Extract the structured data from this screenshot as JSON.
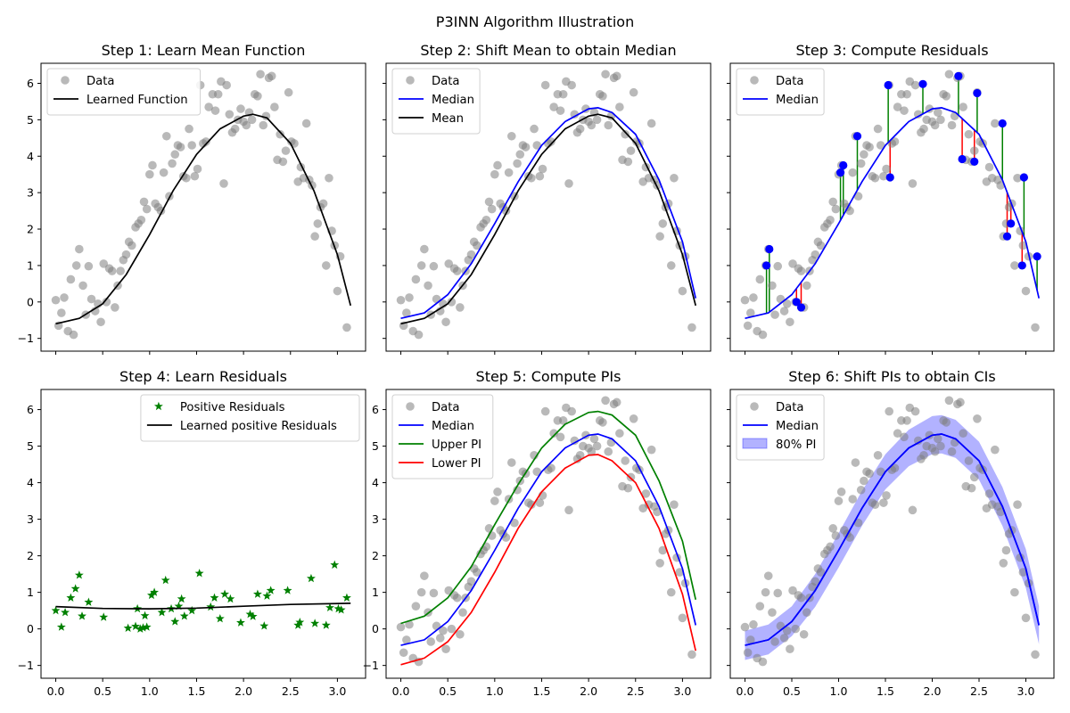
{
  "figure": {
    "suptitle": "P3INN Algorithm Illustration",
    "xticks": [
      "0.0",
      "0.5",
      "1.0",
      "1.5",
      "2.0",
      "2.5",
      "3.0"
    ],
    "yticks": [
      "−1",
      "0",
      "1",
      "2",
      "3",
      "4",
      "5",
      "6"
    ]
  },
  "colors": {
    "data": "#808080",
    "black": "#000000",
    "median": "#0000ff",
    "upper": "#008000",
    "lower": "#ff0000",
    "star": "#008000",
    "band": "#0000ff"
  },
  "chart_data": [
    {
      "type": "scatter",
      "title": "Step 1: Learn Mean Function",
      "xlim": [
        -0.157,
        3.3
      ],
      "ylim": [
        -1.35,
        6.55
      ],
      "grid": false,
      "legend": {
        "placement": "top-left",
        "entries": [
          "Data",
          "Learned Function"
        ]
      },
      "series": [
        {
          "name": "Data",
          "kind": "scatter",
          "ref": "data"
        },
        {
          "name": "Learned Function",
          "kind": "line",
          "ref": "mean"
        }
      ]
    },
    {
      "type": "scatter",
      "title": "Step 2: Shift Mean to obtain Median",
      "xlim": [
        -0.157,
        3.3
      ],
      "ylim": [
        -1.35,
        6.55
      ],
      "grid": false,
      "legend": {
        "placement": "top-left",
        "entries": [
          "Data",
          "Median",
          "Mean"
        ]
      },
      "series": [
        {
          "name": "Data",
          "kind": "scatter",
          "ref": "data"
        },
        {
          "name": "Median",
          "kind": "line",
          "ref": "median"
        },
        {
          "name": "Mean",
          "kind": "line",
          "ref": "mean"
        }
      ]
    },
    {
      "type": "scatter",
      "title": "Step 3: Compute Residuals",
      "xlim": [
        -0.157,
        3.3
      ],
      "ylim": [
        -1.35,
        6.55
      ],
      "grid": false,
      "legend": {
        "placement": "top-left",
        "entries": [
          "Data",
          "Median"
        ]
      },
      "series": [
        {
          "name": "Data",
          "kind": "scatter",
          "ref": "data"
        },
        {
          "name": "Median",
          "kind": "line",
          "ref": "median"
        }
      ],
      "highlighted_points": [
        [
          0.23,
          1.0
        ],
        [
          0.26,
          1.45
        ],
        [
          0.55,
          0.0
        ],
        [
          0.6,
          -0.15
        ],
        [
          1.02,
          3.55
        ],
        [
          1.05,
          3.75
        ],
        [
          1.2,
          4.55
        ],
        [
          1.53,
          5.95
        ],
        [
          1.55,
          3.42
        ],
        [
          1.9,
          5.98
        ],
        [
          2.28,
          6.2
        ],
        [
          2.32,
          3.92
        ],
        [
          2.45,
          3.85
        ],
        [
          2.48,
          5.73
        ],
        [
          2.75,
          4.9
        ],
        [
          2.8,
          1.8
        ],
        [
          2.84,
          2.15
        ],
        [
          2.96,
          1.0
        ],
        [
          2.98,
          3.42
        ],
        [
          3.12,
          1.25
        ]
      ]
    },
    {
      "type": "scatter",
      "title": "Step 4: Learn Residuals",
      "xlim": [
        -0.157,
        3.3
      ],
      "ylim": [
        -1.35,
        6.55
      ],
      "grid": false,
      "legend": {
        "placement": "top-right",
        "entries": [
          "Positive Residuals",
          "Learned positive Residuals"
        ]
      },
      "series": [
        {
          "name": "Positive Residuals",
          "kind": "star",
          "points": [
            [
              0.0,
              0.5
            ],
            [
              0.06,
              0.05
            ],
            [
              0.1,
              0.45
            ],
            [
              0.16,
              0.85
            ],
            [
              0.21,
              1.1
            ],
            [
              0.25,
              1.47
            ],
            [
              0.28,
              0.35
            ],
            [
              0.35,
              0.73
            ],
            [
              0.51,
              0.32
            ],
            [
              0.77,
              0.02
            ],
            [
              0.85,
              0.07
            ],
            [
              0.87,
              0.55
            ],
            [
              0.9,
              0.0
            ],
            [
              0.93,
              0.03
            ],
            [
              0.95,
              0.36
            ],
            [
              0.97,
              0.05
            ],
            [
              1.02,
              0.92
            ],
            [
              1.05,
              1.0
            ],
            [
              1.13,
              0.45
            ],
            [
              1.17,
              1.33
            ],
            [
              1.23,
              0.55
            ],
            [
              1.27,
              0.2
            ],
            [
              1.31,
              0.62
            ],
            [
              1.34,
              0.82
            ],
            [
              1.37,
              0.35
            ],
            [
              1.45,
              0.5
            ],
            [
              1.53,
              1.52
            ],
            [
              1.65,
              0.6
            ],
            [
              1.69,
              0.85
            ],
            [
              1.75,
              0.28
            ],
            [
              1.8,
              0.95
            ],
            [
              1.86,
              0.82
            ],
            [
              1.97,
              0.17
            ],
            [
              2.07,
              0.4
            ],
            [
              2.1,
              0.34
            ],
            [
              2.15,
              0.95
            ],
            [
              2.22,
              0.08
            ],
            [
              2.25,
              0.9
            ],
            [
              2.29,
              1.05
            ],
            [
              2.47,
              1.05
            ],
            [
              2.58,
              0.1
            ],
            [
              2.6,
              0.18
            ],
            [
              2.72,
              1.38
            ],
            [
              2.76,
              0.15
            ],
            [
              2.88,
              0.1
            ],
            [
              2.92,
              0.58
            ],
            [
              2.97,
              1.75
            ],
            [
              3.01,
              0.55
            ],
            [
              3.04,
              0.52
            ],
            [
              3.1,
              0.85
            ]
          ]
        },
        {
          "name": "Learned positive Residuals",
          "kind": "line",
          "points": [
            [
              0.0,
              0.61
            ],
            [
              0.5,
              0.56
            ],
            [
              1.0,
              0.55
            ],
            [
              1.5,
              0.57
            ],
            [
              2.0,
              0.62
            ],
            [
              2.5,
              0.67
            ],
            [
              3.14,
              0.7
            ]
          ]
        }
      ]
    },
    {
      "type": "scatter",
      "title": "Step 5: Compute PIs",
      "xlim": [
        -0.157,
        3.3
      ],
      "ylim": [
        -1.35,
        6.55
      ],
      "grid": false,
      "legend": {
        "placement": "top-left",
        "entries": [
          "Data",
          "Median",
          "Upper PI",
          "Lower PI"
        ]
      },
      "series": [
        {
          "name": "Data",
          "kind": "scatter",
          "ref": "data"
        },
        {
          "name": "Median",
          "kind": "line",
          "ref": "median"
        },
        {
          "name": "Upper PI",
          "kind": "line",
          "ref": "upper"
        },
        {
          "name": "Lower PI",
          "kind": "line",
          "ref": "lower"
        }
      ]
    },
    {
      "type": "area",
      "title": "Step 6: Shift PIs to obtain CIs",
      "xlim": [
        -0.157,
        3.3
      ],
      "ylim": [
        -1.35,
        6.55
      ],
      "grid": false,
      "legend": {
        "placement": "top-left",
        "entries": [
          "Data",
          "Median",
          "80% PI"
        ]
      },
      "series": [
        {
          "name": "Data",
          "kind": "scatter",
          "ref": "data"
        },
        {
          "name": "Median",
          "kind": "line",
          "ref": "median"
        },
        {
          "name": "80% PI",
          "kind": "band",
          "ref": "ci_band"
        }
      ]
    }
  ],
  "shared_series": {
    "data": [
      [
        0.0,
        0.05
      ],
      [
        0.03,
        -0.65
      ],
      [
        0.06,
        -0.3
      ],
      [
        0.09,
        0.12
      ],
      [
        0.13,
        -0.8
      ],
      [
        0.16,
        0.62
      ],
      [
        0.19,
        -0.9
      ],
      [
        0.22,
        1.0
      ],
      [
        0.25,
        1.45
      ],
      [
        0.29,
        0.45
      ],
      [
        0.32,
        -0.35
      ],
      [
        0.35,
        0.98
      ],
      [
        0.38,
        0.08
      ],
      [
        0.42,
        -0.25
      ],
      [
        0.45,
        -0.05
      ],
      [
        0.48,
        -0.55
      ],
      [
        0.51,
        1.05
      ],
      [
        0.54,
        0.0
      ],
      [
        0.57,
        0.92
      ],
      [
        0.6,
        0.85
      ],
      [
        0.63,
        -0.15
      ],
      [
        0.66,
        0.45
      ],
      [
        0.69,
        0.85
      ],
      [
        0.72,
        1.15
      ],
      [
        0.75,
        1.3
      ],
      [
        0.78,
        1.65
      ],
      [
        0.81,
        1.55
      ],
      [
        0.85,
        2.05
      ],
      [
        0.88,
        2.15
      ],
      [
        0.91,
        2.25
      ],
      [
        0.94,
        2.75
      ],
      [
        0.97,
        2.55
      ],
      [
        1.0,
        3.5
      ],
      [
        1.03,
        3.75
      ],
      [
        1.06,
        2.7
      ],
      [
        1.09,
        2.6
      ],
      [
        1.12,
        2.5
      ],
      [
        1.15,
        3.55
      ],
      [
        1.18,
        4.55
      ],
      [
        1.21,
        2.9
      ],
      [
        1.24,
        3.8
      ],
      [
        1.27,
        4.05
      ],
      [
        1.3,
        4.3
      ],
      [
        1.33,
        4.25
      ],
      [
        1.36,
        3.45
      ],
      [
        1.39,
        3.4
      ],
      [
        1.42,
        4.75
      ],
      [
        1.45,
        4.3
      ],
      [
        1.48,
        3.45
      ],
      [
        1.51,
        3.65
      ],
      [
        1.54,
        5.95
      ],
      [
        1.57,
        4.35
      ],
      [
        1.6,
        4.4
      ],
      [
        1.63,
        5.35
      ],
      [
        1.67,
        5.7
      ],
      [
        1.7,
        5.25
      ],
      [
        1.73,
        5.7
      ],
      [
        1.76,
        6.05
      ],
      [
        1.79,
        3.25
      ],
      [
        1.82,
        5.95
      ],
      [
        1.85,
        5.15
      ],
      [
        1.88,
        4.65
      ],
      [
        1.91,
        4.75
      ],
      [
        1.94,
        5.0
      ],
      [
        1.97,
        5.3
      ],
      [
        2.0,
        4.95
      ],
      [
        2.03,
        4.85
      ],
      [
        2.06,
        5.2
      ],
      [
        2.09,
        5.0
      ],
      [
        2.12,
        5.7
      ],
      [
        2.15,
        5.65
      ],
      [
        2.18,
        6.25
      ],
      [
        2.21,
        4.85
      ],
      [
        2.24,
        5.1
      ],
      [
        2.27,
        6.15
      ],
      [
        2.3,
        6.2
      ],
      [
        2.33,
        5.35
      ],
      [
        2.36,
        3.9
      ],
      [
        2.39,
        4.6
      ],
      [
        2.42,
        3.85
      ],
      [
        2.45,
        4.15
      ],
      [
        2.48,
        5.75
      ],
      [
        2.51,
        4.4
      ],
      [
        2.54,
        4.35
      ],
      [
        2.58,
        3.3
      ],
      [
        2.61,
        3.7
      ],
      [
        2.64,
        3.4
      ],
      [
        2.67,
        4.9
      ],
      [
        2.7,
        3.35
      ],
      [
        2.73,
        3.2
      ],
      [
        2.76,
        1.8
      ],
      [
        2.79,
        2.15
      ],
      [
        2.82,
        2.6
      ],
      [
        2.85,
        2.7
      ],
      [
        2.88,
        1.0
      ],
      [
        2.91,
        3.4
      ],
      [
        2.94,
        1.95
      ],
      [
        2.97,
        1.55
      ],
      [
        3.0,
        0.3
      ],
      [
        3.03,
        1.25
      ],
      [
        3.1,
        -0.7
      ]
    ],
    "mean": [
      [
        0.0,
        -0.6
      ],
      [
        0.25,
        -0.45
      ],
      [
        0.5,
        -0.05
      ],
      [
        0.75,
        0.75
      ],
      [
        1.0,
        1.85
      ],
      [
        1.25,
        3.05
      ],
      [
        1.5,
        4.05
      ],
      [
        1.75,
        4.75
      ],
      [
        2.0,
        5.1
      ],
      [
        2.1,
        5.15
      ],
      [
        2.25,
        5.05
      ],
      [
        2.5,
        4.35
      ],
      [
        2.75,
        3.05
      ],
      [
        3.0,
        1.3
      ],
      [
        3.14,
        -0.1
      ]
    ],
    "median": [
      [
        0.0,
        -0.45
      ],
      [
        0.25,
        -0.3
      ],
      [
        0.5,
        0.2
      ],
      [
        0.75,
        1.05
      ],
      [
        1.0,
        2.15
      ],
      [
        1.25,
        3.3
      ],
      [
        1.5,
        4.3
      ],
      [
        1.75,
        4.95
      ],
      [
        2.0,
        5.3
      ],
      [
        2.1,
        5.33
      ],
      [
        2.25,
        5.2
      ],
      [
        2.5,
        4.6
      ],
      [
        2.75,
        3.35
      ],
      [
        3.0,
        1.65
      ],
      [
        3.14,
        0.1
      ]
    ],
    "upper": [
      [
        0.0,
        0.15
      ],
      [
        0.25,
        0.35
      ],
      [
        0.5,
        0.85
      ],
      [
        0.75,
        1.7
      ],
      [
        1.0,
        2.85
      ],
      [
        1.25,
        3.95
      ],
      [
        1.5,
        4.95
      ],
      [
        1.75,
        5.6
      ],
      [
        2.0,
        5.92
      ],
      [
        2.1,
        5.95
      ],
      [
        2.25,
        5.85
      ],
      [
        2.5,
        5.3
      ],
      [
        2.75,
        4.05
      ],
      [
        3.0,
        2.4
      ],
      [
        3.14,
        0.8
      ]
    ],
    "lower": [
      [
        0.0,
        -0.98
      ],
      [
        0.25,
        -0.8
      ],
      [
        0.5,
        -0.35
      ],
      [
        0.75,
        0.45
      ],
      [
        1.0,
        1.55
      ],
      [
        1.25,
        2.75
      ],
      [
        1.5,
        3.75
      ],
      [
        1.75,
        4.4
      ],
      [
        2.0,
        4.75
      ],
      [
        2.1,
        4.77
      ],
      [
        2.25,
        4.6
      ],
      [
        2.5,
        4.0
      ],
      [
        2.75,
        2.75
      ],
      [
        3.0,
        0.95
      ],
      [
        3.14,
        -0.6
      ]
    ],
    "ci_band": [
      [
        0.0,
        -0.05,
        -0.85
      ],
      [
        0.25,
        0.12,
        -0.7
      ],
      [
        0.5,
        0.62,
        -0.2
      ],
      [
        0.75,
        1.5,
        0.6
      ],
      [
        1.0,
        2.62,
        1.68
      ],
      [
        1.25,
        3.78,
        2.82
      ],
      [
        1.5,
        4.78,
        3.82
      ],
      [
        1.75,
        5.45,
        4.45
      ],
      [
        2.0,
        5.82,
        4.78
      ],
      [
        2.1,
        5.85,
        4.8
      ],
      [
        2.25,
        5.72,
        4.68
      ],
      [
        2.5,
        5.12,
        4.08
      ],
      [
        2.75,
        3.88,
        2.82
      ],
      [
        3.0,
        2.18,
        1.12
      ],
      [
        3.14,
        0.62,
        -0.42
      ]
    ]
  }
}
